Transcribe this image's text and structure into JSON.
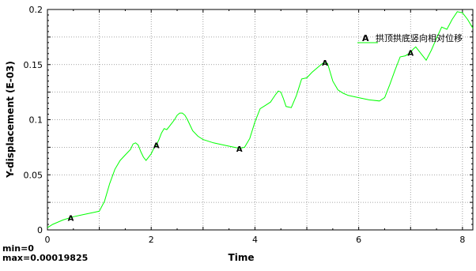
{
  "chart_data": {
    "type": "line",
    "xlabel": "Time",
    "ylabel": "Y-displacement (E-03)",
    "xlim": [
      0,
      8.2
    ],
    "ylim": [
      0,
      0.2
    ],
    "x_ticks": [
      0,
      2,
      4,
      6,
      8
    ],
    "x_tick_labels": [
      "0",
      "2",
      "4",
      "6",
      "8"
    ],
    "y_ticks": [
      0,
      0.05,
      0.1,
      0.15,
      0.2
    ],
    "y_tick_labels": [
      "0",
      "0.05",
      "0.1",
      "0.15",
      "0.2"
    ],
    "grid": true,
    "legend_position": "top-right",
    "series": [
      {
        "name": "拱顶拱底竖向相对位移",
        "color": "#00ff00",
        "marker": "A",
        "marker_x": [
          0.45,
          2.1,
          3.7,
          5.35,
          7.0
        ],
        "x": [
          0,
          0.1,
          0.3,
          0.5,
          0.7,
          0.9,
          1.0,
          1.1,
          1.2,
          1.3,
          1.4,
          1.5,
          1.6,
          1.65,
          1.7,
          1.75,
          1.8,
          1.85,
          1.9,
          1.95,
          2.0,
          2.05,
          2.1,
          2.15,
          2.2,
          2.25,
          2.3,
          2.35,
          2.4,
          2.45,
          2.5,
          2.55,
          2.6,
          2.65,
          2.7,
          2.75,
          2.8,
          2.9,
          3.0,
          3.2,
          3.4,
          3.6,
          3.7,
          3.8,
          3.9,
          4.0,
          4.1,
          4.2,
          4.3,
          4.4,
          4.45,
          4.5,
          4.55,
          4.6,
          4.7,
          4.8,
          4.9,
          5.0,
          5.1,
          5.2,
          5.3,
          5.35,
          5.4,
          5.5,
          5.6,
          5.7,
          5.8,
          6.0,
          6.2,
          6.4,
          6.5,
          6.6,
          6.7,
          6.8,
          6.9,
          7.0,
          7.05,
          7.1,
          7.15,
          7.2,
          7.3,
          7.4,
          7.5,
          7.6,
          7.7,
          7.8,
          7.9,
          8.0,
          8.1,
          8.2
        ],
        "y": [
          0.002,
          0.005,
          0.009,
          0.012,
          0.014,
          0.016,
          0.017,
          0.026,
          0.042,
          0.055,
          0.063,
          0.068,
          0.073,
          0.078,
          0.079,
          0.077,
          0.071,
          0.066,
          0.063,
          0.066,
          0.069,
          0.074,
          0.077,
          0.082,
          0.088,
          0.092,
          0.091,
          0.094,
          0.097,
          0.1,
          0.104,
          0.106,
          0.106,
          0.104,
          0.1,
          0.095,
          0.09,
          0.085,
          0.082,
          0.079,
          0.077,
          0.075,
          0.074,
          0.075,
          0.083,
          0.098,
          0.11,
          0.113,
          0.116,
          0.123,
          0.126,
          0.125,
          0.119,
          0.112,
          0.111,
          0.122,
          0.137,
          0.138,
          0.143,
          0.147,
          0.151,
          0.152,
          0.151,
          0.135,
          0.127,
          0.124,
          0.122,
          0.12,
          0.118,
          0.117,
          0.12,
          0.132,
          0.145,
          0.157,
          0.158,
          0.161,
          0.164,
          0.166,
          0.163,
          0.16,
          0.154,
          0.163,
          0.174,
          0.184,
          0.182,
          0.191,
          0.198,
          0.197,
          0.191,
          0.183
        ]
      }
    ]
  },
  "summary": {
    "min_label": "min=0",
    "max_label": "max=0.00019825"
  }
}
